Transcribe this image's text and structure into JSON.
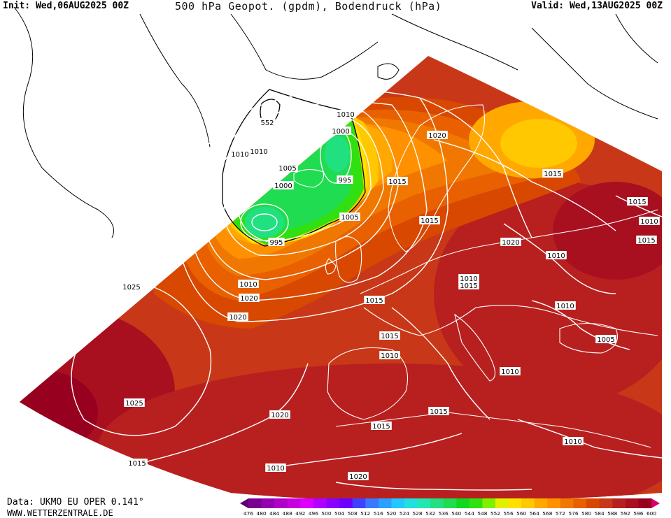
{
  "header": {
    "init": "Init: Wed,06AUG2025 00Z",
    "title": "500 hPa Geopot. (gpdm), Bodendruck (hPa)",
    "valid": "Valid: Wed,13AUG2025 00Z"
  },
  "footer": {
    "data_source": "Data: UKMO EU OPER 0.141°",
    "website": "WWW.WETTERZENTRALE.DE"
  },
  "colorbar": {
    "levels": [
      "476",
      "480",
      "484",
      "488",
      "492",
      "496",
      "500",
      "504",
      "508",
      "512",
      "516",
      "520",
      "524",
      "528",
      "532",
      "536",
      "540",
      "544",
      "548",
      "552",
      "556",
      "560",
      "564",
      "568",
      "572",
      "576",
      "580",
      "584",
      "588",
      "592",
      "596",
      "600"
    ],
    "colors": [
      "#5a0070",
      "#7a0090",
      "#9400b0",
      "#b000c8",
      "#c800e0",
      "#dd00ff",
      "#b000ff",
      "#8a00ff",
      "#6a00ff",
      "#4040ff",
      "#3a78ff",
      "#2aa0ff",
      "#20c8ff",
      "#20e0e0",
      "#20e8b0",
      "#20e080",
      "#20dc50",
      "#10d820",
      "#30e010",
      "#80f000",
      "#e0f000",
      "#ffe000",
      "#ffc800",
      "#ffa800",
      "#ff9000",
      "#f07800",
      "#e86000",
      "#d84800",
      "#c83818",
      "#b82020",
      "#a81020",
      "#980020",
      "#d8006a"
    ]
  },
  "geopotential_labels": [
    "552"
  ],
  "pressure_labels": [
    "1010",
    "1000",
    "1010",
    "1010",
    "1005",
    "995",
    "1000",
    "995",
    "1005",
    "1010",
    "1020",
    "1015",
    "1015",
    "1020",
    "1015",
    "1015",
    "1010",
    "1015",
    "1010",
    "1025",
    "1010",
    "1015",
    "1020",
    "1020",
    "1015",
    "1015",
    "1010",
    "1005",
    "1010",
    "1025",
    "1020",
    "1015",
    "1015",
    "1010",
    "1015",
    "1010",
    "1020",
    "1010"
  ]
}
